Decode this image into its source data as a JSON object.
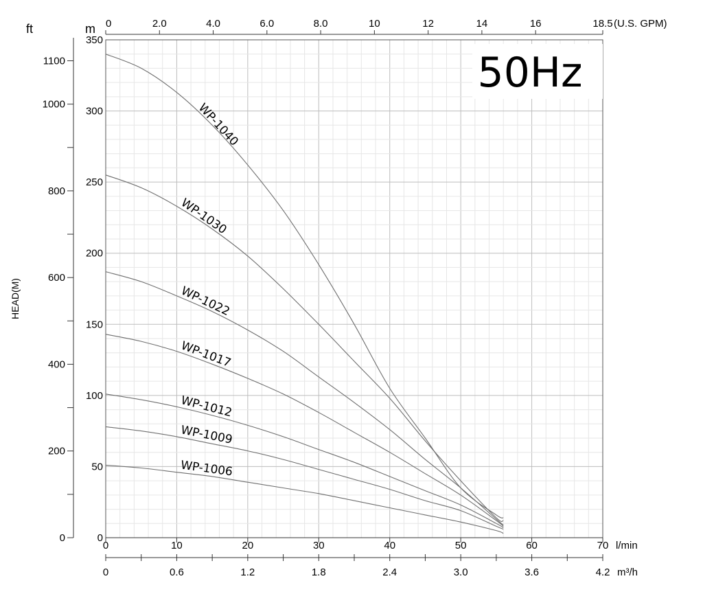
{
  "chart_data": {
    "type": "line",
    "title": "",
    "ylabel": "HEAD(M)",
    "frequency_label": "50Hz",
    "grid": true,
    "x_axis_lmin": {
      "unit": "l/min",
      "range": [
        0,
        70
      ],
      "ticks": [
        "0",
        "10",
        "20",
        "30",
        "40",
        "50",
        "60",
        "70"
      ]
    },
    "x_axis_m3h": {
      "unit": "m³/h",
      "range": [
        0,
        4.2
      ],
      "ticks": [
        "0",
        "0.6",
        "1.2",
        "1.8",
        "2.4",
        "3.0",
        "3.6",
        "4.2"
      ]
    },
    "x_axis_gpm": {
      "unit": "(U.S. GPM)",
      "range": [
        0,
        18.5
      ],
      "ticks": [
        {
          "v": 0,
          "t": "0"
        },
        {
          "v": 2,
          "t": "2.0"
        },
        {
          "v": 4,
          "t": "4.0"
        },
        {
          "v": 6,
          "t": "6.0"
        },
        {
          "v": 8,
          "t": "8.0"
        },
        {
          "v": 10,
          "t": "10"
        },
        {
          "v": 12,
          "t": "12"
        },
        {
          "v": 14,
          "t": "14"
        },
        {
          "v": 16,
          "t": "16"
        },
        {
          "v": 18.5,
          "t": "18.5"
        }
      ]
    },
    "y_axis_m": {
      "unit": "m",
      "range": [
        0,
        350
      ],
      "ticks": [
        "0",
        "50",
        "100",
        "150",
        "200",
        "250",
        "300",
        "350"
      ]
    },
    "y_axis_ft": {
      "unit": "ft",
      "ticks": [
        "0",
        "200",
        "400",
        "600",
        "800",
        "1000",
        "1100"
      ]
    },
    "series": [
      {
        "name": "WP-1040",
        "x": [
          0,
          5,
          10,
          15,
          20,
          25,
          30,
          35,
          40,
          45,
          50,
          55,
          56
        ],
        "y": [
          340,
          330,
          313,
          290,
          262,
          230,
          192,
          150,
          105,
          70,
          35,
          16,
          14
        ]
      },
      {
        "name": "WP-1030",
        "x": [
          0,
          5,
          10,
          15,
          20,
          25,
          30,
          35,
          40,
          45,
          50,
          55,
          56
        ],
        "y": [
          255,
          246,
          233,
          217,
          198,
          175,
          150,
          124,
          98,
          68,
          40,
          14,
          12
        ]
      },
      {
        "name": "WP-1022",
        "x": [
          0,
          5,
          10,
          15,
          20,
          25,
          30,
          35,
          40,
          45,
          50,
          55,
          56
        ],
        "y": [
          187,
          180,
          170,
          159,
          146,
          131,
          113,
          95,
          76,
          55,
          35,
          13,
          9
        ]
      },
      {
        "name": "WP-1017",
        "x": [
          0,
          5,
          10,
          15,
          20,
          25,
          30,
          35,
          40,
          45,
          50,
          55,
          56
        ],
        "y": [
          143,
          138,
          131,
          122,
          112,
          101,
          88,
          74,
          60,
          45,
          30,
          12,
          8
        ]
      },
      {
        "name": "WP-1012",
        "x": [
          0,
          5,
          10,
          15,
          20,
          25,
          30,
          35,
          40,
          45,
          50,
          55,
          56
        ],
        "y": [
          101,
          97,
          92,
          86,
          79,
          71,
          62,
          53,
          43,
          33,
          23,
          10,
          7
        ]
      },
      {
        "name": "WP-1009",
        "x": [
          0,
          5,
          10,
          15,
          20,
          25,
          30,
          35,
          40,
          45,
          50,
          55,
          56
        ],
        "y": [
          78,
          75,
          71,
          66,
          61,
          55,
          48,
          41,
          34,
          26,
          19,
          8,
          6
        ]
      },
      {
        "name": "WP-1006",
        "x": [
          0,
          5,
          10,
          15,
          20,
          25,
          30,
          35,
          40,
          45,
          50,
          55,
          56
        ],
        "y": [
          51,
          49,
          46,
          43,
          39,
          35,
          31,
          26,
          21,
          16,
          11,
          5,
          3
        ]
      }
    ]
  }
}
